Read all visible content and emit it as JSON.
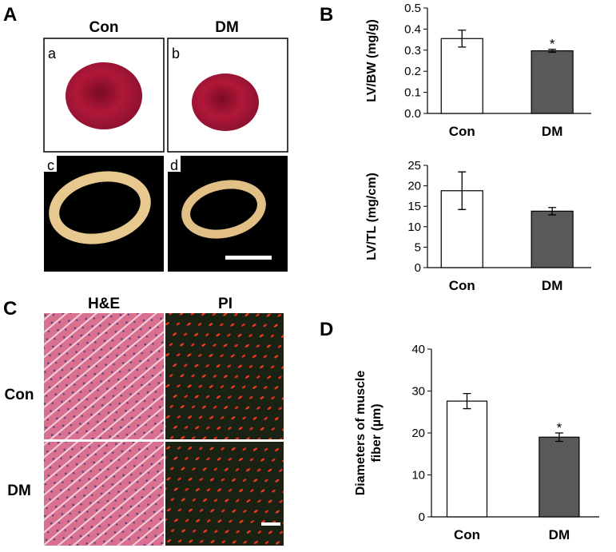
{
  "panels": {
    "A": "A",
    "B": "B",
    "C": "C",
    "D": "D"
  },
  "photos_A": {
    "columns": [
      "Con",
      "DM"
    ],
    "tiles": [
      "a",
      "b",
      "c",
      "d"
    ]
  },
  "photos_C": {
    "columns": [
      "H&E",
      "PI"
    ],
    "rows": [
      "Con",
      "DM"
    ]
  },
  "chart_data": [
    {
      "type": "bar",
      "ylabel": [
        "LV/BW (mg/g)"
      ],
      "categories": [
        "Con",
        "DM"
      ],
      "values": [
        0.355,
        0.297
      ],
      "errors": [
        0.04,
        0.007
      ],
      "colors": [
        "#ffffff",
        "#595959"
      ],
      "ylim": [
        0,
        0.5
      ],
      "yticks": [
        {
          "value": 0,
          "label": "0.0"
        },
        0.1,
        0.2,
        0.3,
        0.4,
        0.5
      ],
      "annotations": [
        {
          "category": "DM",
          "text": "*"
        }
      ]
    },
    {
      "type": "bar",
      "ylabel": [
        "LV/TL (mg/cm)"
      ],
      "categories": [
        "Con",
        "DM"
      ],
      "values": [
        18.8,
        13.8
      ],
      "errors": [
        4.6,
        0.9
      ],
      "colors": [
        "#ffffff",
        "#595959"
      ],
      "ylim": [
        0,
        25
      ],
      "yticks": [
        0,
        5,
        10,
        15,
        20,
        25
      ]
    },
    {
      "type": "bar",
      "ylabel": [
        "Diameters of muscle",
        "fiber (µm)"
      ],
      "categories": [
        "Con",
        "DM"
      ],
      "values": [
        27.6,
        19.0
      ],
      "errors": [
        1.8,
        1.0
      ],
      "colors": [
        "#ffffff",
        "#595959"
      ],
      "ylim": [
        0,
        40
      ],
      "yticks": [
        0,
        10,
        20,
        30,
        40
      ],
      "annotations": [
        {
          "category": "DM",
          "text": "*"
        }
      ]
    }
  ]
}
